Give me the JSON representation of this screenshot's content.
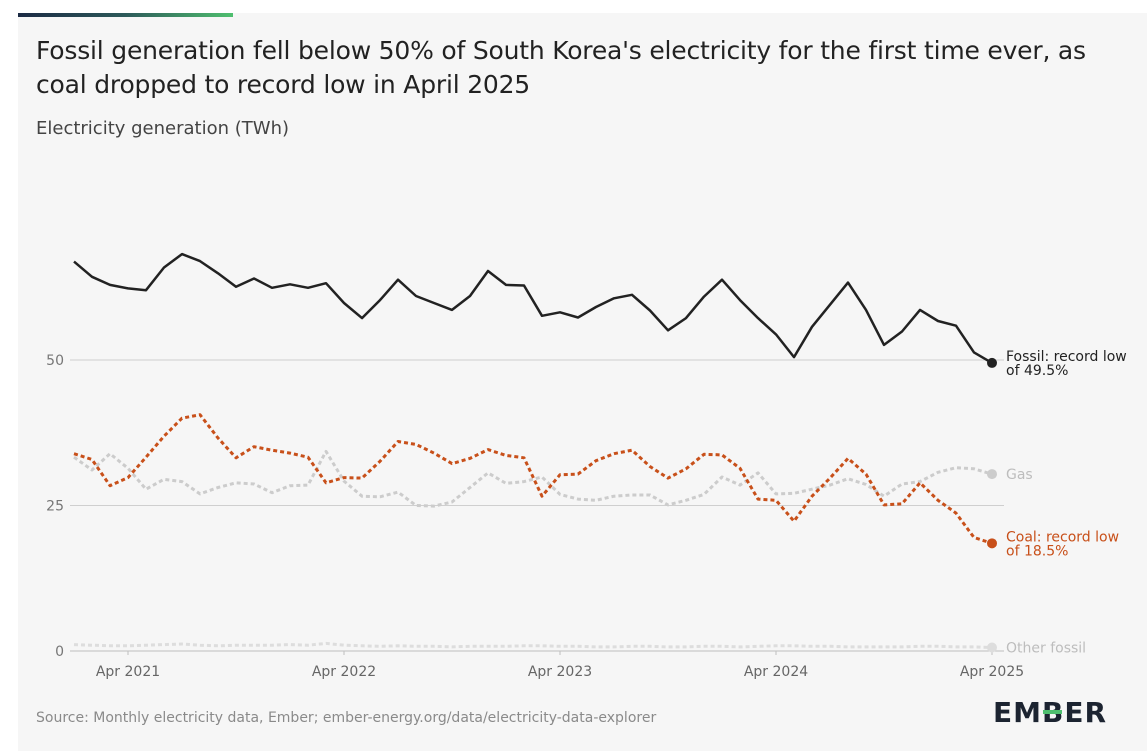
{
  "header": {
    "title": "Fossil generation fell below 50% of South Korea's electricity for the first time ever, as coal dropped to record low in April 2025",
    "subtitle": "Electricity generation (TWh)"
  },
  "footer": {
    "source": "Source: Monthly electricity data, Ember; ember-energy.org/data/electricity-data-explorer",
    "logo_text": "EMBER"
  },
  "chart_data": {
    "type": "line",
    "title": "Fossil generation fell below 50% of South Korea's electricity for the first time ever, as coal dropped to record low in April 2025",
    "ylabel": "Electricity generation (TWh)",
    "ylim": [
      0,
      85
    ],
    "yticks": [
      0,
      25,
      50
    ],
    "grid": true,
    "x_ticks": [
      "Apr 2021",
      "Apr 2022",
      "Apr 2023",
      "Apr 2024",
      "Apr 2025"
    ],
    "x": [
      "2021-01",
      "2021-02",
      "2021-03",
      "2021-04",
      "2021-05",
      "2021-06",
      "2021-07",
      "2021-08",
      "2021-09",
      "2021-10",
      "2021-11",
      "2021-12",
      "2022-01",
      "2022-02",
      "2022-03",
      "2022-04",
      "2022-05",
      "2022-06",
      "2022-07",
      "2022-08",
      "2022-09",
      "2022-10",
      "2022-11",
      "2022-12",
      "2023-01",
      "2023-02",
      "2023-03",
      "2023-04",
      "2023-05",
      "2023-06",
      "2023-07",
      "2023-08",
      "2023-09",
      "2023-10",
      "2023-11",
      "2023-12",
      "2024-01",
      "2024-02",
      "2024-03",
      "2024-04",
      "2024-05",
      "2024-06",
      "2024-07",
      "2024-08",
      "2024-09",
      "2024-10",
      "2024-11",
      "2024-12",
      "2025-01",
      "2025-02",
      "2025-03",
      "2025-04"
    ],
    "series": [
      {
        "name": "Fossil",
        "label": "Fossil: record low of 49.5%",
        "color": "#222222",
        "dash": "solid",
        "values": [
          66.9,
          64.3,
          62.9,
          62.3,
          62.0,
          65.9,
          68.2,
          67.0,
          64.9,
          62.6,
          64.0,
          62.4,
          63.0,
          62.4,
          63.2,
          59.8,
          57.2,
          60.3,
          63.8,
          61.0,
          59.8,
          58.6,
          61.0,
          65.3,
          62.9,
          62.8,
          57.6,
          58.2,
          57.3,
          59.1,
          60.6,
          61.2,
          58.5,
          55.1,
          57.2,
          60.9,
          63.8,
          60.3,
          57.2,
          54.4,
          50.5,
          55.7,
          59.5,
          63.3,
          58.6,
          52.6,
          54.9,
          58.6,
          56.7,
          55.9,
          51.3,
          49.5
        ]
      },
      {
        "name": "Coal",
        "label": "Coal: record low of 18.5%",
        "color": "#c8501a",
        "dash": "dashed",
        "values": [
          33.9,
          32.9,
          28.4,
          29.8,
          33.3,
          36.9,
          40.0,
          40.6,
          36.6,
          33.2,
          35.1,
          34.5,
          34.0,
          33.3,
          28.9,
          29.8,
          29.7,
          32.6,
          36.0,
          35.5,
          34.0,
          32.2,
          33.1,
          34.6,
          33.6,
          33.2,
          26.6,
          30.3,
          30.4,
          32.7,
          33.9,
          34.5,
          31.7,
          29.7,
          31.3,
          33.8,
          33.7,
          31.4,
          26.1,
          25.9,
          22.3,
          26.6,
          29.7,
          33.1,
          30.4,
          25.1,
          25.3,
          28.9,
          25.9,
          23.7,
          19.5,
          18.5
        ]
      },
      {
        "name": "Gas",
        "label": "Gas",
        "color": "#cccccc",
        "dash": "dashed",
        "values": [
          33.3,
          31.1,
          33.9,
          31.4,
          27.8,
          29.5,
          29.1,
          27.0,
          28.1,
          28.9,
          28.7,
          27.2,
          28.4,
          28.5,
          34.3,
          29.2,
          26.6,
          26.5,
          27.3,
          25.0,
          24.9,
          25.6,
          28.1,
          30.6,
          28.8,
          29.1,
          29.9,
          26.9,
          26.1,
          25.9,
          26.6,
          26.8,
          26.8,
          25.1,
          25.9,
          26.9,
          29.9,
          28.5,
          30.6,
          27.0,
          27.1,
          27.8,
          28.5,
          29.6,
          28.6,
          26.6,
          28.7,
          29.1,
          30.7,
          31.5,
          31.3,
          30.4
        ]
      },
      {
        "name": "Other fossil",
        "label": "Other fossil",
        "color": "#dddddd",
        "dash": "dashed",
        "values": [
          1.1,
          1.0,
          0.9,
          0.9,
          1.0,
          1.1,
          1.2,
          1.0,
          0.9,
          1.0,
          1.0,
          1.0,
          1.1,
          1.0,
          1.3,
          1.0,
          0.9,
          0.8,
          0.9,
          0.8,
          0.8,
          0.7,
          0.8,
          0.8,
          0.8,
          0.9,
          0.9,
          0.8,
          0.8,
          0.7,
          0.7,
          0.8,
          0.8,
          0.7,
          0.7,
          0.8,
          0.8,
          0.7,
          0.8,
          0.9,
          0.9,
          0.8,
          0.8,
          0.7,
          0.7,
          0.7,
          0.7,
          0.8,
          0.8,
          0.7,
          0.7,
          0.6
        ]
      }
    ]
  }
}
